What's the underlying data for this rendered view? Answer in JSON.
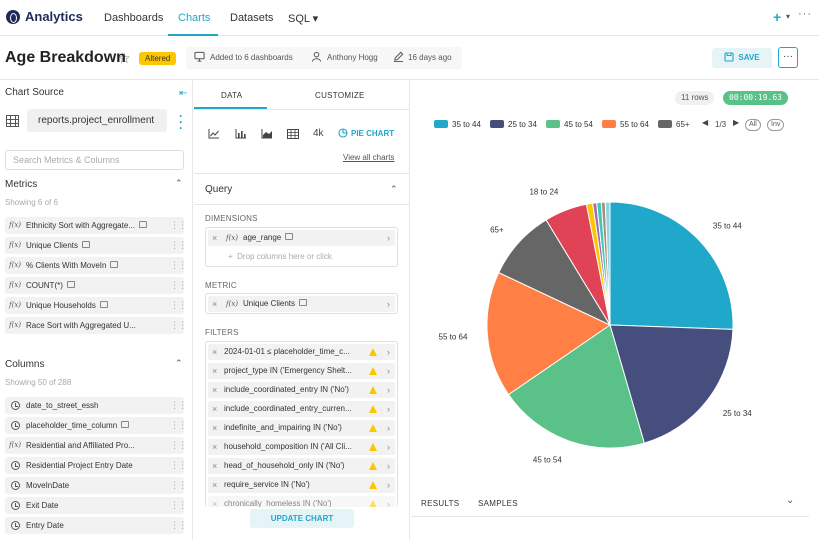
{
  "brand": {
    "name": "Analytics"
  },
  "nav": {
    "items": [
      {
        "label": "Dashboards"
      },
      {
        "label": "Charts"
      },
      {
        "label": "Datasets"
      },
      {
        "label": "SQL ▾"
      }
    ],
    "plus": "+",
    "caret": "▾",
    "more": "···"
  },
  "header": {
    "title": "Age Breakdown",
    "altered_badge": "Altered",
    "added_to": "Added to 6 dashboards",
    "owner": "Anthony Hogg",
    "modified": "16 days ago",
    "save_label": "SAVE",
    "more_label": "···"
  },
  "source": {
    "title": "Chart Source",
    "dataset": "reports.project_enrollment",
    "search_placeholder": "Search Metrics & Columns",
    "metrics_title": "Metrics",
    "metrics_showing": "Showing 6 of 6",
    "metrics": [
      {
        "label": "Ethnicity Sort with Aggregate..."
      },
      {
        "label": "Unique Clients"
      },
      {
        "label": "% Clients With MoveIn"
      },
      {
        "label": "COUNT(*)"
      },
      {
        "label": "Unique Households"
      },
      {
        "label": "Race Sort with Aggregated U..."
      }
    ],
    "columns_title": "Columns",
    "columns_showing": "Showing 50 of 288",
    "columns": [
      {
        "label": "date_to_street_essh",
        "kind": "time"
      },
      {
        "label": "placeholder_time_column",
        "kind": "time"
      },
      {
        "label": "Residential and Affiliated Pro...",
        "kind": "fx"
      },
      {
        "label": "Residential Project Entry Date",
        "kind": "time"
      },
      {
        "label": "MoveInDate",
        "kind": "time"
      },
      {
        "label": "Exit Date",
        "kind": "time"
      },
      {
        "label": "Entry Date",
        "kind": "time"
      }
    ]
  },
  "config": {
    "tab_data": "DATA",
    "tab_customize": "CUSTOMIZE",
    "viz_bignum": "4k",
    "viz_selected": "PIE CHART",
    "view_all": "View all charts",
    "query_title": "Query",
    "dimensions_label": "DIMENSIONS",
    "dimension": "age_range",
    "drop_hint": "Drop columns here or click",
    "metric_label": "METRIC",
    "metric": "Unique Clients",
    "filters_label": "FILTERS",
    "filters": [
      {
        "label": "2024-01-01 ≤ placeholder_time_c..."
      },
      {
        "label": "project_type IN ('Emergency Shelt..."
      },
      {
        "label": "include_coordinated_entry IN ('No')"
      },
      {
        "label": "include_coordinated_entry_curren..."
      },
      {
        "label": "indefinite_and_impairing IN ('No')"
      },
      {
        "label": "household_composition IN ('All Cli..."
      },
      {
        "label": "head_of_household_only IN ('No')"
      },
      {
        "label": "require_service IN ('No')"
      },
      {
        "label": "chronically_homeless IN ('No')"
      }
    ],
    "fx": "f(x)",
    "update_label": "UPDATE CHART"
  },
  "results": {
    "rows": "11 rows",
    "timer": "00:00:19.63",
    "tab_results": "RESULTS",
    "tab_samples": "SAMPLES",
    "legend_page": "1/3",
    "legend_all": "All",
    "legend_inv": "Inv"
  },
  "chart_data": {
    "type": "pie",
    "categories": [
      "35 to 44",
      "25 to 34",
      "45 to 54",
      "55 to 64",
      "65+",
      "18 to 24",
      "(unlabeled 1)",
      "(unlabeled 2)",
      "(unlabeled 3)",
      "(unlabeled 4)",
      "(unlabeled 5)"
    ],
    "values": [
      25.0,
      19.5,
      19.5,
      16.2,
      9.1,
      5.5,
      0.8,
      0.5,
      0.6,
      0.5,
      0.6
    ],
    "colors": [
      "#1fa8c9",
      "#454e7c",
      "#5ac189",
      "#ff7f44",
      "#666666",
      "#e04355",
      "#fcc700",
      "#a868b7",
      "#3cccb4",
      "#a38f79",
      "#8fd3e4"
    ],
    "labels_shown": [
      "35 to 44",
      "25 to 34",
      "45 to 54",
      "55 to 64",
      "65+",
      "18 to 24"
    ],
    "legend_visible": [
      "35 to 44",
      "25 to 34",
      "45 to 54",
      "55 to 64",
      "65+"
    ],
    "legend_position": "top"
  }
}
